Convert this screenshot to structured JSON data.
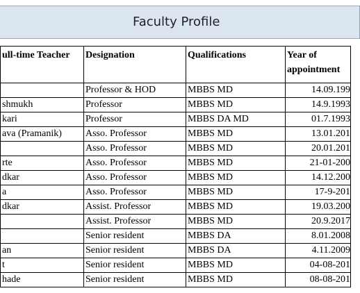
{
  "header": {
    "title": "Faculty Profile"
  },
  "table": {
    "columns": [
      "ull-time Teacher",
      "Designation",
      "Qualifications",
      "Year of appointment"
    ],
    "rows": [
      [
        null,
        "Professor & HOD",
        "MBBS MD",
        "14.09.199"
      ],
      [
        "shmukh",
        "Professor",
        "MBBS MD",
        "14.9.1993"
      ],
      [
        "kari",
        "Professor",
        "MBBS DA MD",
        "01.7.1993"
      ],
      [
        "ava (Pramanik)",
        "Asso. Professor",
        "MBBS MD",
        "13.01.201"
      ],
      [
        null,
        "Asso. Professor",
        "MBBS MD",
        "20.01.201"
      ],
      [
        "rte",
        "Asso. Professor",
        "MBBS MD",
        "21-01-200"
      ],
      [
        "dkar",
        "Asso. Professor",
        "MBBS MD",
        "14.12.200"
      ],
      [
        "a",
        "Asso. Professor",
        "MBBS MD",
        "17-9-201"
      ],
      [
        "dkar",
        "Assist. Professor",
        "MBBS MD",
        "19.03.200"
      ],
      [
        null,
        "Assist. Professor",
        "MBBS MD",
        "20.9.2017"
      ],
      [
        null,
        "Senior resident",
        "MBBS DA",
        "8.01.2008"
      ],
      [
        "an",
        "Senior resident",
        "MBBS DA",
        "4.11.2009"
      ],
      [
        "t",
        "Senior resident",
        "MBBS MD",
        "04-08-201"
      ],
      [
        "hade",
        "Senior resident",
        "MBBS MD",
        "08-08-201"
      ]
    ]
  }
}
